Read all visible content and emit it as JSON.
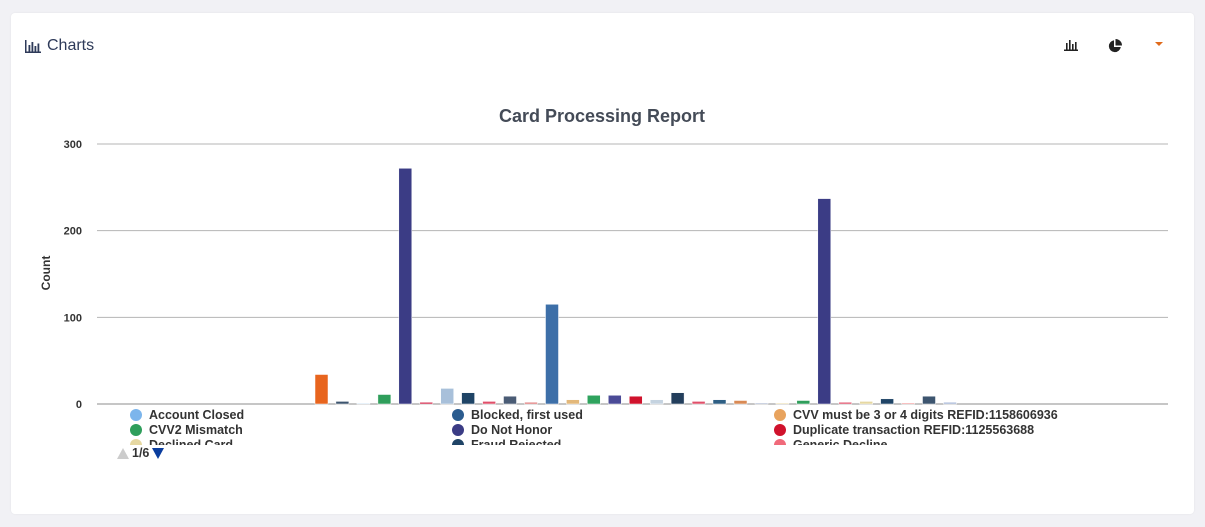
{
  "header": {
    "title": "Charts"
  },
  "toolbar": {
    "icons": [
      "bar-chart-icon",
      "pie-chart-icon",
      "caret-down-icon"
    ],
    "accent": "#e06a1b"
  },
  "chart_data": {
    "type": "bar",
    "title": "Card Processing Report",
    "xlabel": "",
    "ylabel": "Count",
    "ylim": [
      0,
      300
    ],
    "yticks": [
      0,
      100,
      200,
      300
    ],
    "grid": true,
    "legend_position": "bottom",
    "series": [
      {
        "color": "#e8651e",
        "value": 34
      },
      {
        "color": "#3d556f",
        "value": 3
      },
      {
        "color": "#d0e4f4",
        "value": 1
      },
      {
        "color": "#2f9e5b",
        "value": 11
      },
      {
        "color": "#3b3c85",
        "value": 272
      },
      {
        "color": "#d42d4f",
        "value": 2
      },
      {
        "color": "#a8c0da",
        "value": 18
      },
      {
        "color": "#1f4466",
        "value": 13
      },
      {
        "color": "#e0506a",
        "value": 3
      },
      {
        "color": "#4a5c75",
        "value": 9
      },
      {
        "color": "#e07a7a",
        "value": 2
      },
      {
        "color": "#3d6fa8",
        "value": 115
      },
      {
        "color": "#e3b87a",
        "value": 5
      },
      {
        "color": "#2fa35e",
        "value": 10
      },
      {
        "color": "#4b4b97",
        "value": 10
      },
      {
        "color": "#d0122c",
        "value": 9
      },
      {
        "color": "#c5d3e0",
        "value": 5
      },
      {
        "color": "#233e5c",
        "value": 13
      },
      {
        "color": "#e0506a",
        "value": 3
      },
      {
        "color": "#2e5f84",
        "value": 5
      },
      {
        "color": "#d98a55",
        "value": 4
      },
      {
        "color": "#9aa7c5",
        "value": 1
      },
      {
        "color": "#e9d8a6",
        "value": 1
      },
      {
        "color": "#2f9e5b",
        "value": 4
      },
      {
        "color": "#3b3c85",
        "value": 237
      },
      {
        "color": "#e0506a",
        "value": 2
      },
      {
        "color": "#e6d8a2",
        "value": 3
      },
      {
        "color": "#1f4466",
        "value": 6
      },
      {
        "color": "#f08080",
        "value": 1
      },
      {
        "color": "#3d556f",
        "value": 9
      },
      {
        "color": "#a5b5d5",
        "value": 2
      }
    ],
    "legend": [
      {
        "name": "Account Closed",
        "color": "#7cb5ec"
      },
      {
        "name": "Blocked, first used",
        "color": "#2b5c8f"
      },
      {
        "name": "CVV must be 3 or 4 digits REFID:1158606936",
        "color": "#e8a35e"
      },
      {
        "name": "CVV2 Mismatch",
        "color": "#2f9e5b"
      },
      {
        "name": "Do Not Honor",
        "color": "#3b3c85"
      },
      {
        "name": "Duplicate transaction REFID:1125563688",
        "color": "#d0122c"
      },
      {
        "name": "Declined Card",
        "color": "#e6d8a2"
      },
      {
        "name": "Fraud Rejected",
        "color": "#1f4466"
      },
      {
        "name": "Generic Decline",
        "color": "#f06a7a"
      }
    ],
    "pager": "1/6"
  }
}
